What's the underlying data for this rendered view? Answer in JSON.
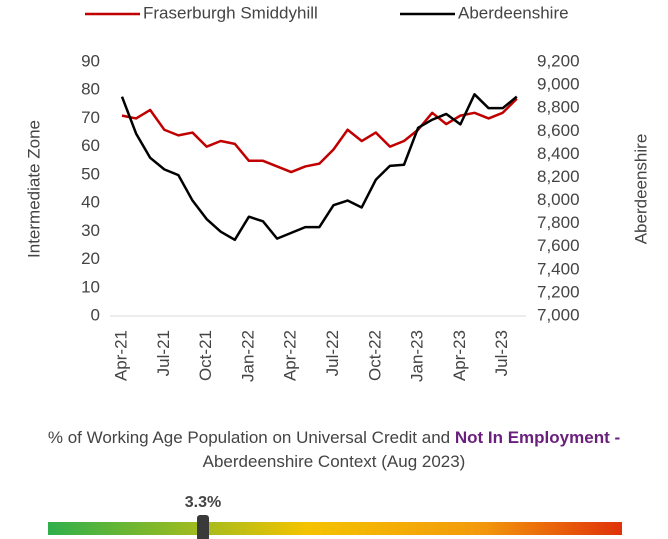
{
  "chart_data": {
    "type": "line",
    "categories": [
      "Apr-21",
      null,
      null,
      "Jul-21",
      null,
      null,
      "Oct-21",
      null,
      null,
      "Jan-22",
      null,
      null,
      "Apr-22",
      null,
      null,
      "Jul-22",
      null,
      null,
      "Oct-22",
      null,
      null,
      "Jan-23",
      null,
      null,
      "Apr-23",
      null,
      null,
      "Jul-23",
      null
    ],
    "series": [
      {
        "name": "Fraserburgh Smiddyhill",
        "color": "#c00000",
        "values": [
          71,
          70,
          73,
          66,
          64,
          65,
          60,
          62,
          61,
          55,
          55,
          53,
          51,
          53,
          54,
          59,
          66,
          62,
          65,
          60,
          62,
          66,
          72,
          68,
          71,
          72,
          70,
          72,
          77
        ]
      },
      {
        "name": "Aberdeenshire",
        "color": "#000000",
        "axis": "y2",
        "values": [
          8900,
          8580,
          8370,
          8270,
          8220,
          8000,
          7840,
          7730,
          7660,
          7860,
          7820,
          7670,
          7720,
          7770,
          7770,
          7960,
          8000,
          7940,
          8180,
          8300,
          8310,
          8630,
          8700,
          8750,
          8660,
          8920,
          8800,
          8800,
          8900
        ]
      }
    ],
    "ylabel": "Intermediate Zone",
    "y2label": "Aberdeenshire",
    "ylim": [
      0,
      90
    ],
    "yticks": [
      0,
      10,
      20,
      30,
      40,
      50,
      60,
      70,
      80,
      90
    ],
    "y2lim": [
      7000,
      9200
    ],
    "y2ticks": [
      {
        "value": 7000,
        "label": "7,000"
      },
      {
        "value": 7200,
        "label": "7,200"
      },
      {
        "value": 7400,
        "label": "7,400"
      },
      {
        "value": 7600,
        "label": "7,600"
      },
      {
        "value": 7800,
        "label": "7,800"
      },
      {
        "value": 8000,
        "label": "8,000"
      },
      {
        "value": 8200,
        "label": "8,200"
      },
      {
        "value": 8400,
        "label": "8,400"
      },
      {
        "value": 8600,
        "label": "8,600"
      },
      {
        "value": 8800,
        "label": "8,800"
      },
      {
        "value": 9000,
        "label": "9,000"
      },
      {
        "value": 9200,
        "label": "9,200"
      }
    ],
    "legend": "top",
    "grid": false
  },
  "context": {
    "title_parts": [
      "% of Working Age Population on Universal Credit and ",
      "Not In Employment -",
      " Aberdeenshire Context (Aug 2023)"
    ],
    "indicator": {
      "value": 3.3,
      "value_label": "3.3%"
    }
  }
}
